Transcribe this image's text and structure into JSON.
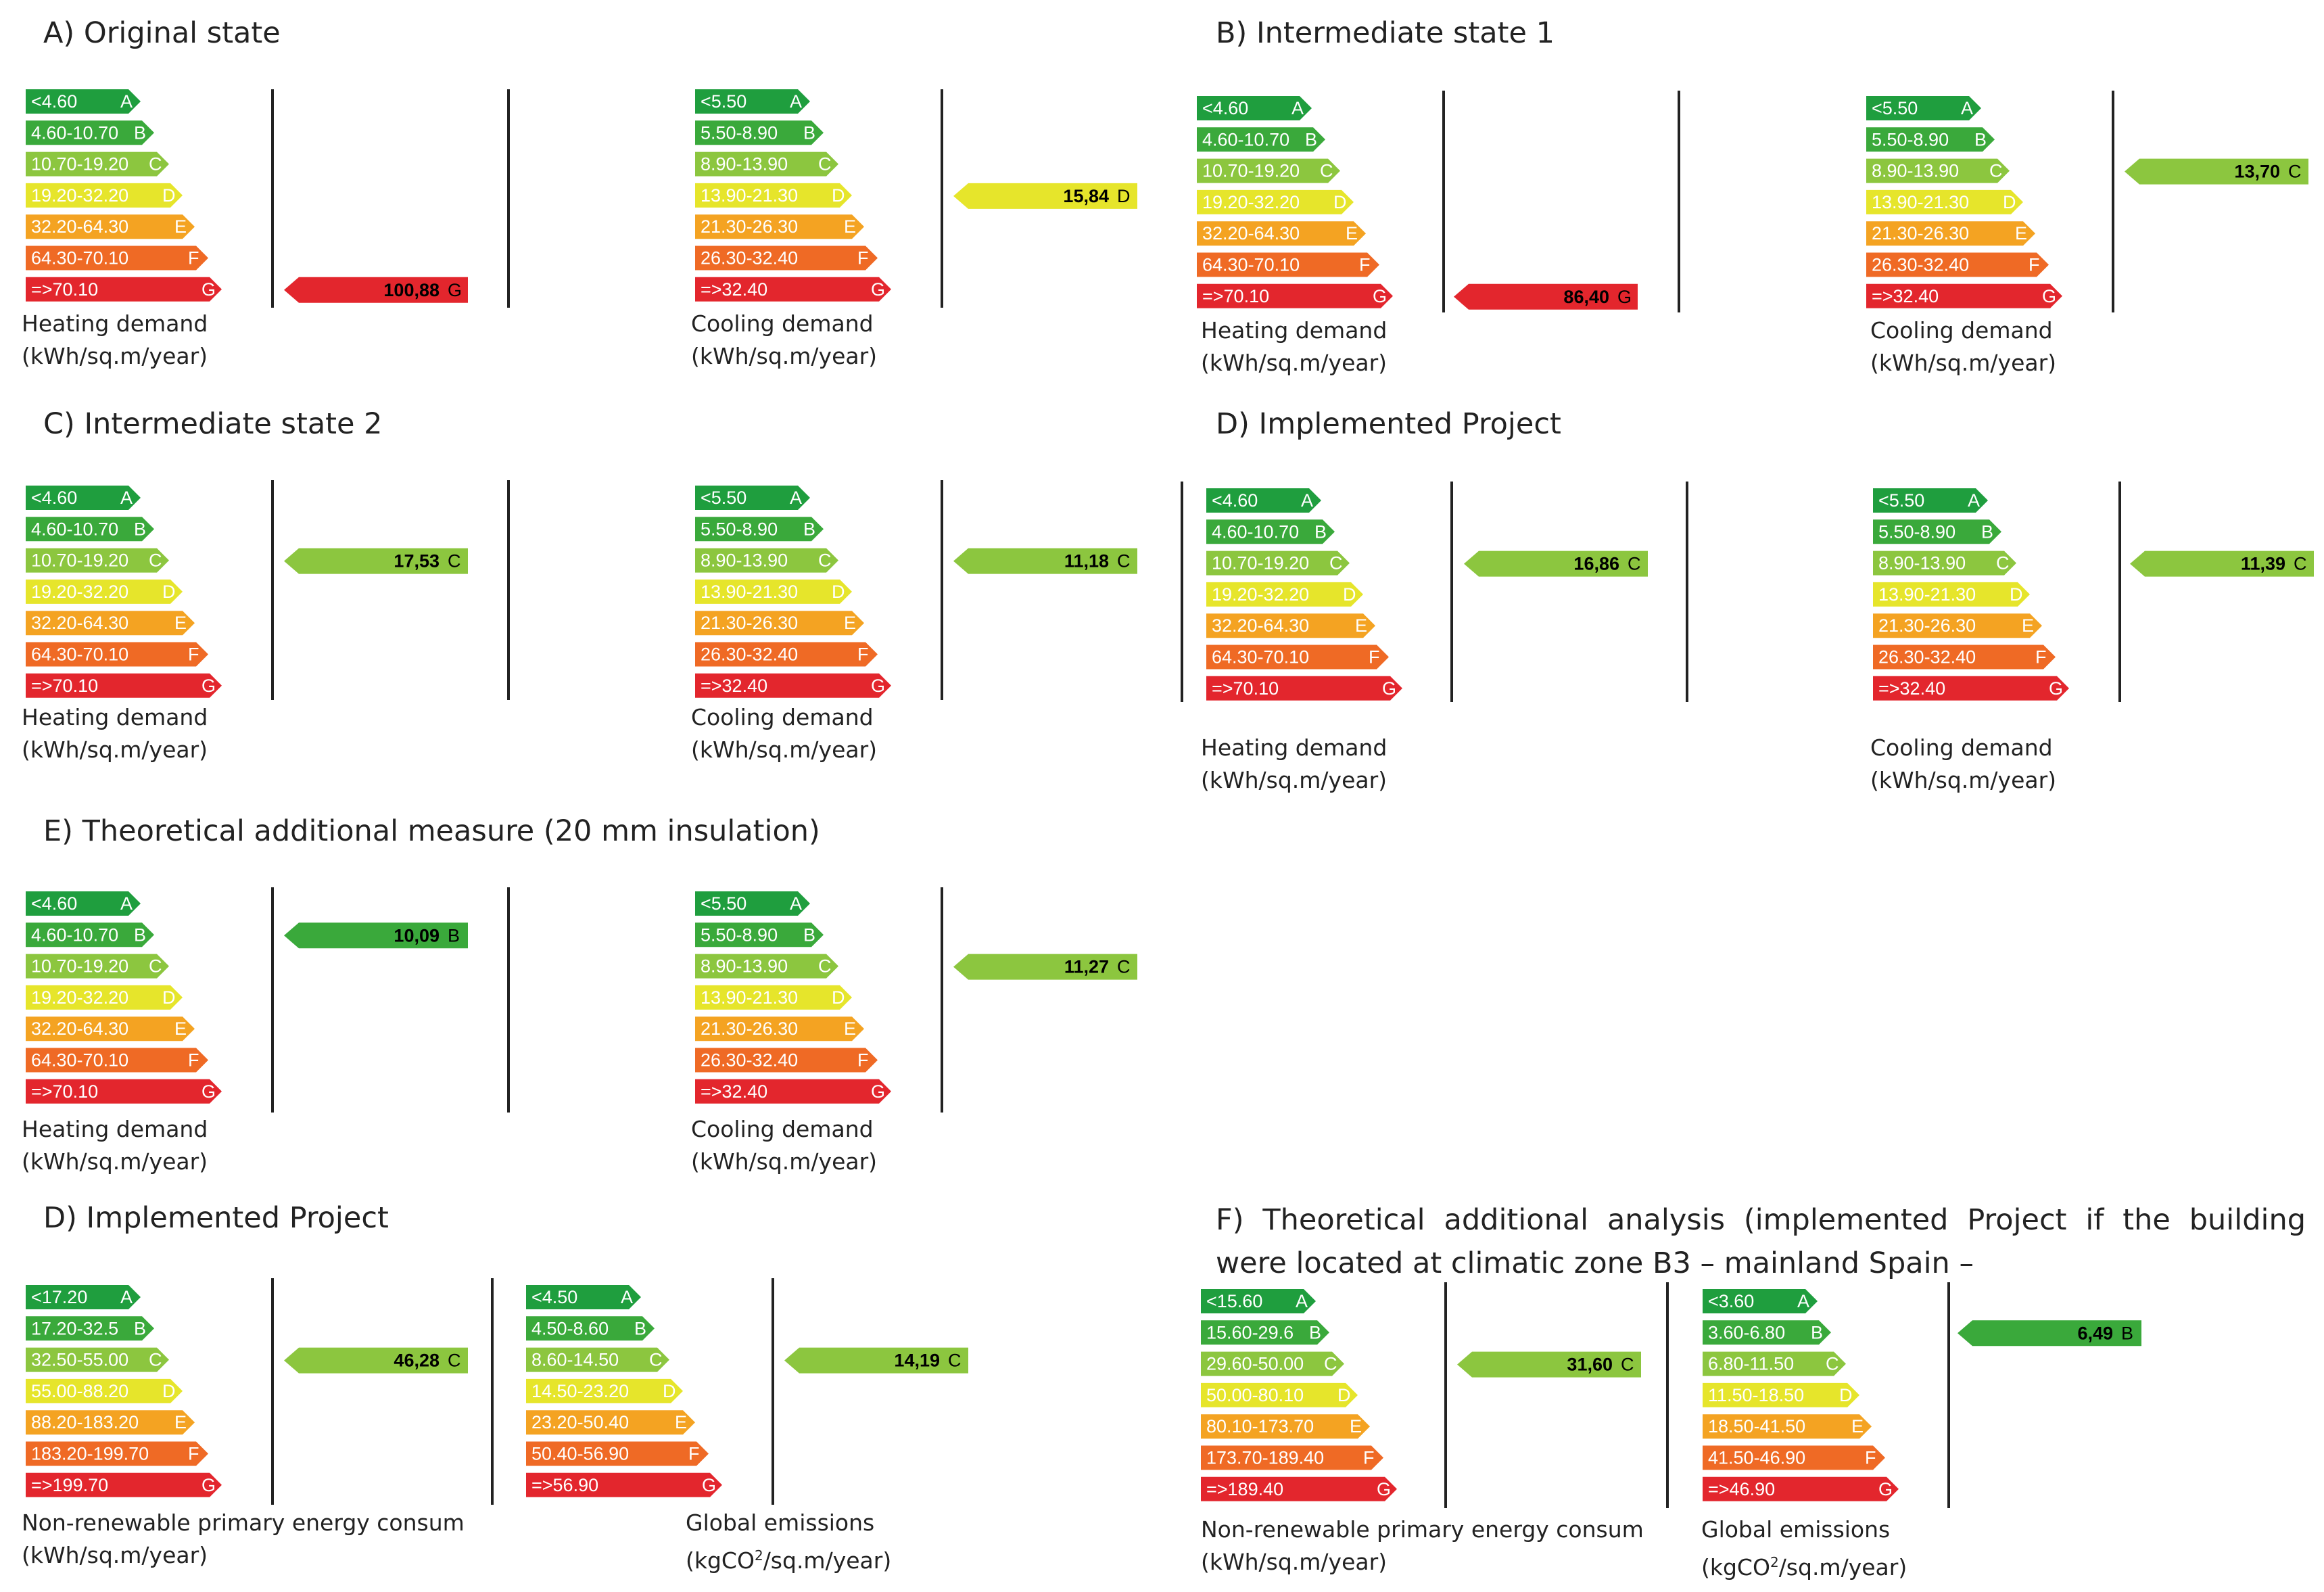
{
  "palette": {
    "A": "#1f9e3e",
    "B": "#3aa93b",
    "C": "#8cc63f",
    "D": "#e6e52b",
    "E": "#f4a322",
    "F": "#ef6a25",
    "G": "#e3262d"
  },
  "sections": {
    "A": {
      "title": "A)  Original state"
    },
    "B": {
      "title": "B)  Intermediate state 1"
    },
    "C": {
      "title": "C)  Intermediate state 2"
    },
    "D1": {
      "title": "D)  Implemented Project"
    },
    "E": {
      "title": "E)  Theoretical additional measure (20 mm insulation)"
    },
    "D2": {
      "title": "D)  Implemented Project"
    },
    "F": {
      "title": "F)  Theoretical additional analysis (implemented Project if the building were located at climatic zone B3 – mainland Spain –"
    }
  },
  "captions": {
    "heating_line1": "Heating demand",
    "cooling_line1": "Cooling demand",
    "unit_kwh": "(kWh/sq.m/year)",
    "nrpe_line1": "Non-renewable primary energy consum",
    "emissions_line1": "Global emissions",
    "emissions_unit_pre": "(kgCO",
    "emissions_unit_sup": "2",
    "emissions_unit_post": "/sq.m/year)"
  },
  "scales": {
    "heating": [
      "<4.60",
      "4.60-10.70",
      "10.70-19.20",
      "19.20-32.20",
      "32.20-64.30",
      "64.30-70.10",
      "=>70.10"
    ],
    "cooling": [
      "<5.50",
      "5.50-8.90",
      "8.90-13.90",
      "13.90-21.30",
      "21.30-26.30",
      "26.30-32.40",
      "=>32.40"
    ],
    "nrpe_d": [
      "<17.20",
      "17.20-32.5",
      "32.50-55.00",
      "55.00-88.20",
      "88.20-183.20",
      "183.20-199.70",
      "=>199.70"
    ],
    "emis_d": [
      "<4.50",
      "4.50-8.60",
      "8.60-14.50",
      "14.50-23.20",
      "23.20-50.40",
      "50.40-56.90",
      "=>56.90"
    ],
    "nrpe_f": [
      "<15.60",
      "15.60-29.6",
      "29.60-50.00",
      "50.00-80.10",
      "80.10-173.70",
      "173.70-189.40",
      "=>189.40"
    ],
    "emis_f": [
      "<3.60",
      "3.60-6.80",
      "6.80-11.50",
      "11.50-18.50",
      "18.50-41.50",
      "41.50-46.90",
      "=>46.90"
    ]
  },
  "chart_data": [
    {
      "type": "bar",
      "panel": "A",
      "title": "Original state",
      "xlabel": "Heating demand (kWh/sq.m/year)",
      "categories": [
        "A",
        "B",
        "C",
        "D",
        "E",
        "F",
        "G"
      ],
      "value": 100.88,
      "value_label": "100,88",
      "rating": "G"
    },
    {
      "type": "bar",
      "panel": "A",
      "title": "Original state",
      "xlabel": "Cooling demand (kWh/sq.m/year)",
      "categories": [
        "A",
        "B",
        "C",
        "D",
        "E",
        "F",
        "G"
      ],
      "value": 15.84,
      "value_label": "15,84",
      "rating": "D"
    },
    {
      "type": "bar",
      "panel": "B",
      "title": "Intermediate state 1",
      "xlabel": "Heating demand (kWh/sq.m/year)",
      "categories": [
        "A",
        "B",
        "C",
        "D",
        "E",
        "F",
        "G"
      ],
      "value": 86.4,
      "value_label": "86,40",
      "rating": "G"
    },
    {
      "type": "bar",
      "panel": "B",
      "title": "Intermediate state 1",
      "xlabel": "Cooling demand (kWh/sq.m/year)",
      "categories": [
        "A",
        "B",
        "C",
        "D",
        "E",
        "F",
        "G"
      ],
      "value": 13.7,
      "value_label": "13,70",
      "rating": "C"
    },
    {
      "type": "bar",
      "panel": "C",
      "title": "Intermediate state 2",
      "xlabel": "Heating demand (kWh/sq.m/year)",
      "categories": [
        "A",
        "B",
        "C",
        "D",
        "E",
        "F",
        "G"
      ],
      "value": 17.53,
      "value_label": "17,53",
      "rating": "C"
    },
    {
      "type": "bar",
      "panel": "C",
      "title": "Intermediate state 2",
      "xlabel": "Cooling demand (kWh/sq.m/year)",
      "categories": [
        "A",
        "B",
        "C",
        "D",
        "E",
        "F",
        "G"
      ],
      "value": 11.18,
      "value_label": "11,18",
      "rating": "C"
    },
    {
      "type": "bar",
      "panel": "D",
      "title": "Implemented Project",
      "xlabel": "Heating demand (kWh/sq.m/year)",
      "categories": [
        "A",
        "B",
        "C",
        "D",
        "E",
        "F",
        "G"
      ],
      "value": 16.86,
      "value_label": "16,86",
      "rating": "C"
    },
    {
      "type": "bar",
      "panel": "D",
      "title": "Implemented Project",
      "xlabel": "Cooling demand (kWh/sq.m/year)",
      "categories": [
        "A",
        "B",
        "C",
        "D",
        "E",
        "F",
        "G"
      ],
      "value": 11.39,
      "value_label": "11,39",
      "rating": "C"
    },
    {
      "type": "bar",
      "panel": "E",
      "title": "Theoretical additional measure (20 mm insulation)",
      "xlabel": "Heating demand (kWh/sq.m/year)",
      "categories": [
        "A",
        "B",
        "C",
        "D",
        "E",
        "F",
        "G"
      ],
      "value": 10.09,
      "value_label": "10,09",
      "rating": "B"
    },
    {
      "type": "bar",
      "panel": "E",
      "title": "Theoretical additional measure (20 mm insulation)",
      "xlabel": "Cooling demand (kWh/sq.m/year)",
      "categories": [
        "A",
        "B",
        "C",
        "D",
        "E",
        "F",
        "G"
      ],
      "value": 11.27,
      "value_label": "11,27",
      "rating": "C"
    },
    {
      "type": "bar",
      "panel": "D",
      "title": "Implemented Project",
      "xlabel": "Non-renewable primary energy consum (kWh/sq.m/year)",
      "categories": [
        "A",
        "B",
        "C",
        "D",
        "E",
        "F",
        "G"
      ],
      "value": 46.28,
      "value_label": "46,28",
      "rating": "C"
    },
    {
      "type": "bar",
      "panel": "D",
      "title": "Implemented Project",
      "xlabel": "Global emissions (kgCO2/sq.m/year)",
      "categories": [
        "A",
        "B",
        "C",
        "D",
        "E",
        "F",
        "G"
      ],
      "value": 14.19,
      "value_label": "14,19",
      "rating": "C"
    },
    {
      "type": "bar",
      "panel": "F",
      "title": "Theoretical additional analysis (climatic zone B3)",
      "xlabel": "Non-renewable primary energy consum (kWh/sq.m/year)",
      "categories": [
        "A",
        "B",
        "C",
        "D",
        "E",
        "F",
        "G"
      ],
      "value": 31.6,
      "value_label": "31,60",
      "rating": "C"
    },
    {
      "type": "bar",
      "panel": "F",
      "title": "Theoretical additional analysis (climatic zone B3)",
      "xlabel": "Global emissions (kgCO2/sq.m/year)",
      "categories": [
        "A",
        "B",
        "C",
        "D",
        "E",
        "F",
        "G"
      ],
      "value": 6.49,
      "value_label": "6,49",
      "rating": "B"
    }
  ]
}
